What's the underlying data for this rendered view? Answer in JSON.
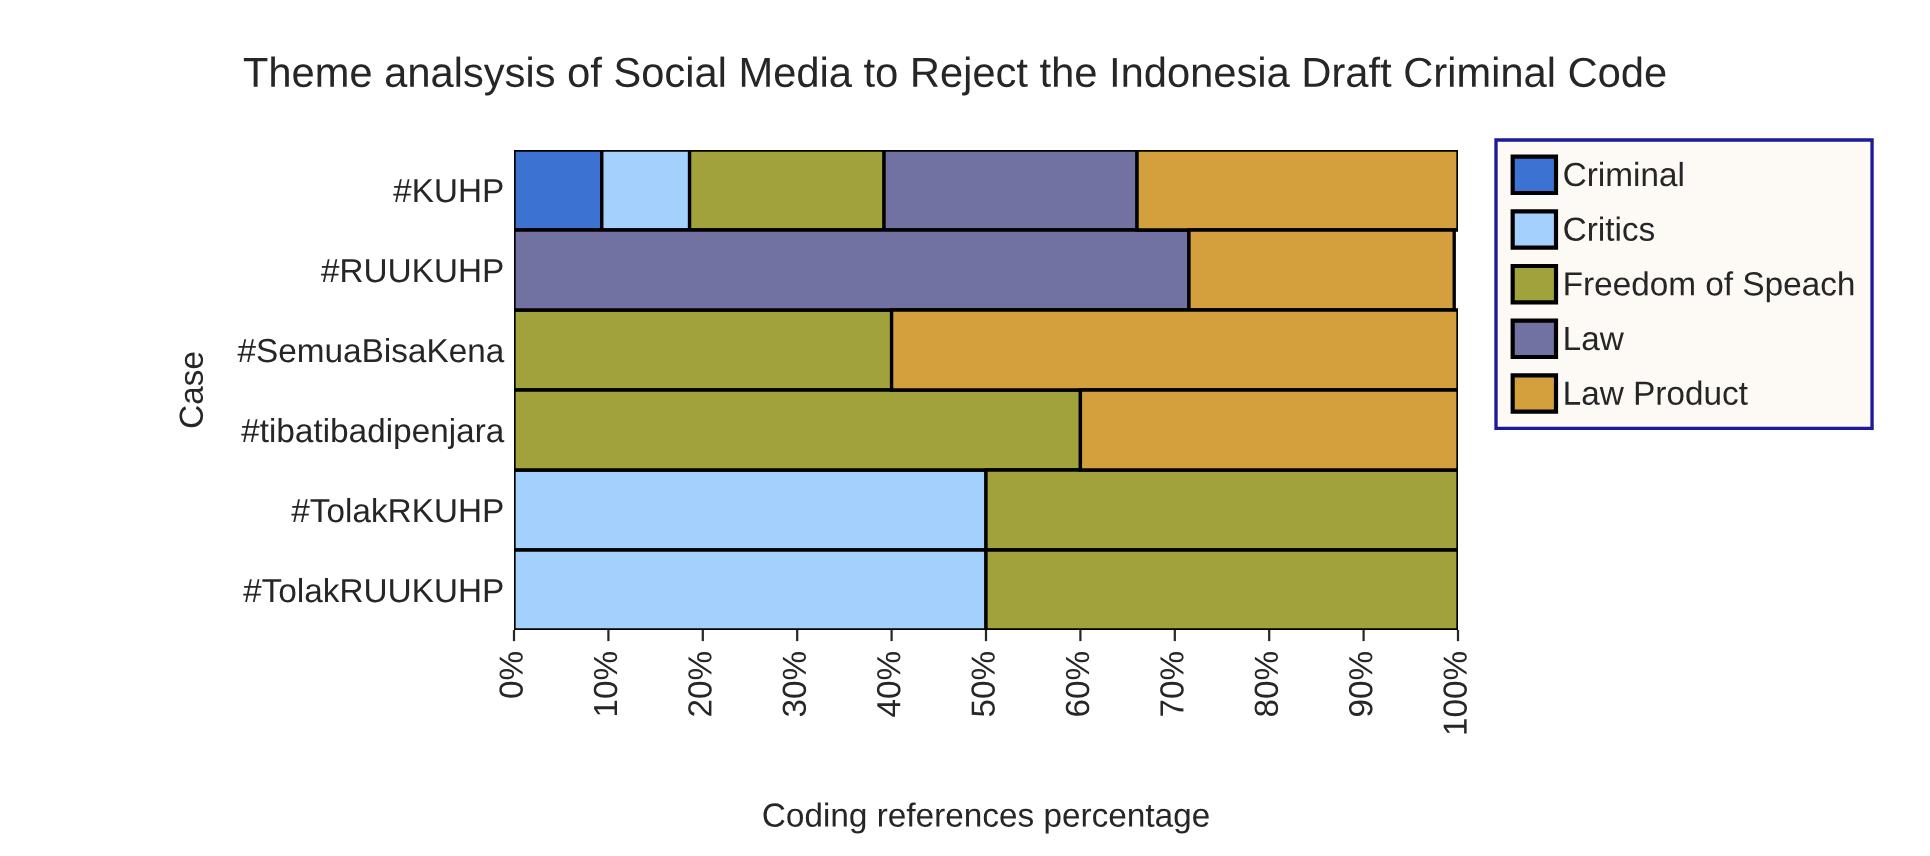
{
  "chart_data": {
    "type": "bar",
    "orientation": "horizontal",
    "stacked": true,
    "title": "Theme analsysis of Social Media to Reject the Indonesia Draft Criminal Code",
    "xlabel": "Coding references percentage",
    "ylabel": "Case",
    "categories": [
      "#KUHP",
      "#RUUKUHP",
      "#SemuaBisaKena",
      "#tibatibadipenjara",
      "#TolakRKUHP",
      "#TolakRUUKUHP"
    ],
    "series": [
      {
        "name": "Criminal",
        "color": "#3c73d3",
        "values": [
          9.3,
          null,
          null,
          null,
          null,
          null
        ]
      },
      {
        "name": "Critics",
        "color": "#a3d0fd",
        "values": [
          9.3,
          null,
          null,
          null,
          50,
          50
        ]
      },
      {
        "name": "Freedom of Speach",
        "color": "#a2a23d",
        "values": [
          20.6,
          null,
          40,
          60,
          50,
          50
        ]
      },
      {
        "name": "Law",
        "color": "#7272a2",
        "values": [
          26.8,
          71.5,
          null,
          null,
          null,
          null
        ]
      },
      {
        "name": "Law Product",
        "color": "#d3a03d",
        "values": [
          34,
          28.1,
          60,
          40,
          null,
          null
        ]
      }
    ],
    "xlim": [
      0,
      100
    ],
    "xticks": [
      {
        "value": 0,
        "label": "0%"
      },
      {
        "value": 10,
        "label": "10%"
      },
      {
        "value": 20,
        "label": "20%"
      },
      {
        "value": 30,
        "label": "30%"
      },
      {
        "value": 40,
        "label": "40%"
      },
      {
        "value": 50,
        "label": "50%"
      },
      {
        "value": 60,
        "label": "60%"
      },
      {
        "value": 70,
        "label": "70%"
      },
      {
        "value": 80,
        "label": "80%"
      },
      {
        "value": 90,
        "label": "90%"
      },
      {
        "value": 100,
        "label": "100%"
      }
    ],
    "grid": false,
    "legend": "right"
  }
}
